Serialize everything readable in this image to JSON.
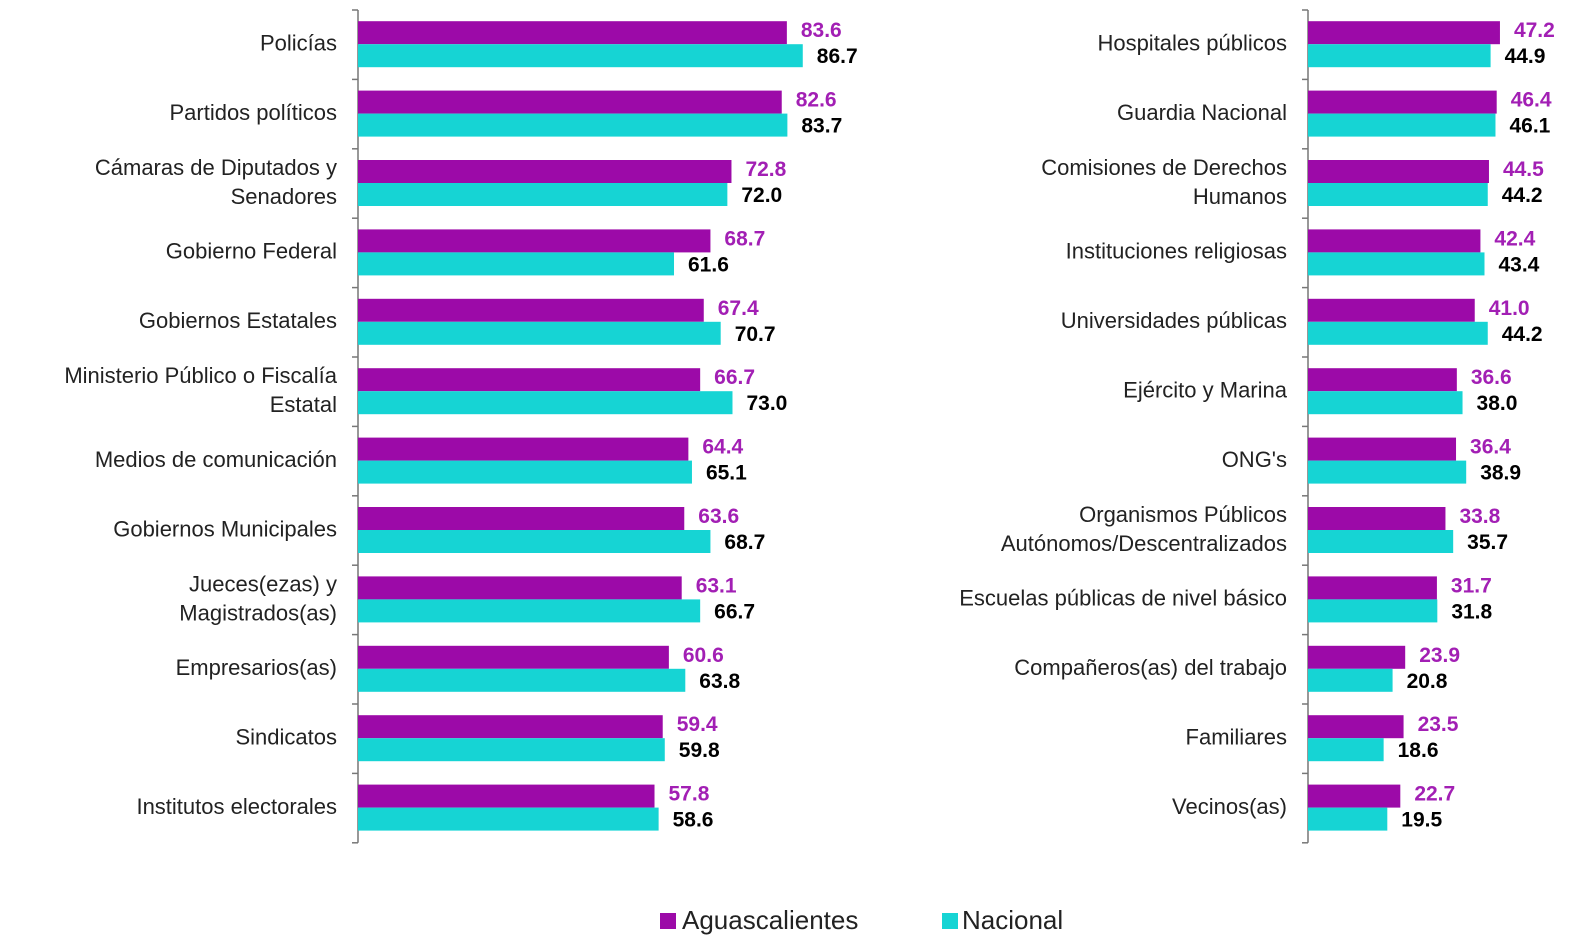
{
  "chart_data": [
    {
      "type": "barh",
      "categories": [
        "Policías",
        "Partidos políticos",
        "Cámaras de Diputados y\nSenadores",
        "Gobierno Federal",
        "Gobiernos Estatales",
        "Ministerio Público o Fiscalía\nEstatal",
        "Medios de comunicación",
        "Gobiernos Municipales",
        "Jueces(ezas) y\nMagistrados(as)",
        "Empresarios(as)",
        "Sindicatos",
        "Institutos electorales"
      ],
      "xlim": [
        0,
        100
      ],
      "series": [
        {
          "name": "Aguascalientes",
          "color": "#9c0aa8",
          "label_color": "#a21fb4",
          "values": [
            83.6,
            82.6,
            72.8,
            68.7,
            67.4,
            66.7,
            64.4,
            63.6,
            63.1,
            60.6,
            59.4,
            57.8
          ],
          "value_labels": [
            "83.6",
            "82.6",
            "72.8",
            "68.7",
            "67.4",
            "66.7",
            "64.4",
            "63.6",
            "63.1",
            "60.6",
            "59.4",
            "57.8"
          ]
        },
        {
          "name": "Nacional",
          "color": "#16d4d4",
          "label_color": "#000000",
          "values": [
            86.7,
            83.7,
            72.0,
            61.6,
            70.7,
            73.0,
            65.1,
            68.7,
            66.7,
            63.8,
            59.8,
            58.6
          ],
          "value_labels": [
            "86.7",
            "83.7",
            "72.0",
            "61.6",
            "70.7",
            "73.0",
            "65.1",
            "68.7",
            "66.7",
            "63.8",
            "59.8",
            "58.6"
          ]
        }
      ]
    },
    {
      "type": "barh",
      "categories": [
        "Hospitales públicos",
        "Guardia Nacional",
        "Comisiones de Derechos\nHumanos",
        "Instituciones religiosas",
        "Universidades públicas",
        "Ejército y Marina",
        "ONG's",
        "Organismos Públicos\nAutónomos/Descentralizados",
        "Escuelas públicas de nivel básico",
        "Compañeros(as) del trabajo",
        "Familiares",
        "Vecinos(as)"
      ],
      "xlim": [
        0,
        60
      ],
      "series": [
        {
          "name": "Aguascalientes",
          "color": "#9c0aa8",
          "label_color": "#a21fb4",
          "values": [
            47.2,
            46.4,
            44.5,
            42.4,
            41.0,
            36.6,
            36.4,
            33.8,
            31.7,
            23.9,
            23.5,
            22.7
          ],
          "value_labels": [
            "47.2",
            "46.4",
            "44.5",
            "42.4",
            "41.0",
            "36.6",
            "36.4",
            "33.8",
            "31.7",
            "23.9",
            "23.5",
            "22.7"
          ]
        },
        {
          "name": "Nacional",
          "color": "#16d4d4",
          "label_color": "#000000",
          "values": [
            44.9,
            46.1,
            44.2,
            43.4,
            44.2,
            38.0,
            38.9,
            35.7,
            31.8,
            20.8,
            18.6,
            19.5
          ],
          "value_labels": [
            "44.9",
            "46.1",
            "44.2",
            "43.4",
            "44.2",
            "38.0",
            "38.9",
            "35.7",
            "31.8",
            "20.8",
            "18.6",
            "19.5"
          ]
        }
      ]
    }
  ]
}
